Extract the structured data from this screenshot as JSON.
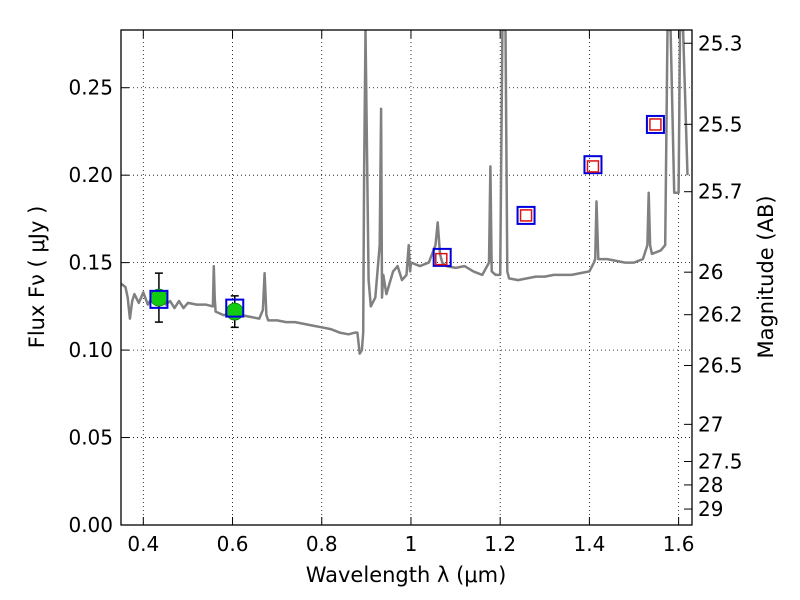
{
  "chart_data": {
    "type": "line",
    "xlabel": "Wavelength  λ (μm)",
    "ylabel": "Flux  Fν  ( μJy )",
    "y2label": "Magnitude (AB)",
    "xlim": [
      0.35,
      1.63
    ],
    "ylim": [
      0.0,
      0.283
    ],
    "grid": true,
    "x_ticks": [
      {
        "value": 0.4,
        "label": "0.4"
      },
      {
        "value": 0.6,
        "label": "0.6"
      },
      {
        "value": 0.8,
        "label": "0.8"
      },
      {
        "value": 1.0,
        "label": "1"
      },
      {
        "value": 1.2,
        "label": "1.2"
      },
      {
        "value": 1.4,
        "label": "1.4"
      },
      {
        "value": 1.6,
        "label": "1.6"
      }
    ],
    "y_ticks": [
      {
        "value": 0.0,
        "label": "0.00"
      },
      {
        "value": 0.05,
        "label": "0.05"
      },
      {
        "value": 0.1,
        "label": "0.10"
      },
      {
        "value": 0.15,
        "label": "0.15"
      },
      {
        "value": 0.2,
        "label": "0.20"
      },
      {
        "value": 0.25,
        "label": "0.25"
      }
    ],
    "mag_ticks": [
      {
        "value": 25.3,
        "label": "25.3"
      },
      {
        "value": 25.5,
        "label": "25.5"
      },
      {
        "value": 25.7,
        "label": "25.7"
      },
      {
        "value": 26,
        "label": "26"
      },
      {
        "value": 26.2,
        "label": "26.2"
      },
      {
        "value": 26.5,
        "label": "26.5"
      },
      {
        "value": 27,
        "label": "27"
      },
      {
        "value": 27.5,
        "label": "27.5"
      },
      {
        "value": 28,
        "label": "28"
      },
      {
        "value": 29,
        "label": "29"
      }
    ],
    "series": [
      {
        "kind": "line",
        "color": "#808080",
        "x": [
          0.35,
          0.36,
          0.365,
          0.37,
          0.375,
          0.38,
          0.39,
          0.4,
          0.41,
          0.42,
          0.43,
          0.44,
          0.45,
          0.46,
          0.47,
          0.48,
          0.49,
          0.5,
          0.52,
          0.54,
          0.556,
          0.558,
          0.56,
          0.562,
          0.58,
          0.6,
          0.62,
          0.64,
          0.66,
          0.668,
          0.672,
          0.676,
          0.68,
          0.7,
          0.72,
          0.74,
          0.76,
          0.78,
          0.8,
          0.82,
          0.84,
          0.86,
          0.875,
          0.88,
          0.885,
          0.89,
          0.893,
          0.895,
          0.898,
          0.905,
          0.91,
          0.92,
          0.93,
          0.933,
          0.935,
          0.938,
          0.945,
          0.96,
          0.97,
          0.98,
          0.99,
          0.995,
          0.998,
          1.0,
          1.02,
          1.04,
          1.055,
          1.06,
          1.065,
          1.07,
          1.08,
          1.1,
          1.12,
          1.14,
          1.16,
          1.175,
          1.178,
          1.181,
          1.19,
          1.2,
          1.205,
          1.208,
          1.212,
          1.216,
          1.22,
          1.24,
          1.26,
          1.28,
          1.3,
          1.32,
          1.34,
          1.36,
          1.38,
          1.4,
          1.41,
          1.413,
          1.416,
          1.42,
          1.44,
          1.46,
          1.48,
          1.5,
          1.52,
          1.53,
          1.533,
          1.536,
          1.54,
          1.56,
          1.57,
          1.575,
          1.578,
          1.582,
          1.59,
          1.6,
          1.603,
          1.606,
          1.61,
          1.62
        ],
        "y": [
          0.138,
          0.136,
          0.13,
          0.118,
          0.128,
          0.132,
          0.127,
          0.133,
          0.126,
          0.13,
          0.127,
          0.129,
          0.126,
          0.128,
          0.124,
          0.128,
          0.124,
          0.127,
          0.126,
          0.126,
          0.125,
          0.148,
          0.13,
          0.122,
          0.12,
          0.121,
          0.12,
          0.119,
          0.118,
          0.123,
          0.144,
          0.12,
          0.117,
          0.117,
          0.116,
          0.116,
          0.115,
          0.114,
          0.113,
          0.112,
          0.11,
          0.109,
          0.11,
          0.11,
          0.098,
          0.1,
          0.11,
          0.2,
          0.283,
          0.14,
          0.125,
          0.13,
          0.16,
          0.238,
          0.13,
          0.143,
          0.132,
          0.145,
          0.148,
          0.14,
          0.143,
          0.16,
          0.145,
          0.15,
          0.148,
          0.15,
          0.16,
          0.173,
          0.155,
          0.15,
          0.148,
          0.147,
          0.148,
          0.145,
          0.143,
          0.15,
          0.205,
          0.145,
          0.143,
          0.143,
          0.283,
          0.283,
          0.283,
          0.145,
          0.141,
          0.14,
          0.141,
          0.142,
          0.142,
          0.143,
          0.143,
          0.143,
          0.144,
          0.145,
          0.15,
          0.152,
          0.185,
          0.152,
          0.152,
          0.151,
          0.15,
          0.15,
          0.152,
          0.16,
          0.19,
          0.16,
          0.155,
          0.157,
          0.16,
          0.283,
          0.283,
          0.283,
          0.19,
          0.19,
          0.283,
          0.283,
          0.283,
          0.2
        ]
      },
      {
        "kind": "points",
        "name": "",
        "marker": "circle",
        "color": "#11cc11",
        "x": [
          0.435,
          0.605
        ],
        "y": [
          0.13,
          0.122
        ],
        "yerr": [
          0.014,
          0.009
        ]
      },
      {
        "kind": "points",
        "marker": "square-open",
        "color": "#0000dd",
        "x": [
          0.435,
          0.605,
          1.07,
          1.258,
          1.408,
          1.548
        ],
        "y": [
          0.129,
          0.124,
          0.153,
          0.177,
          0.206,
          0.229
        ]
      },
      {
        "kind": "points",
        "marker": "square-small-open",
        "color": "#dd1111",
        "x": [
          1.068,
          1.258,
          1.408,
          1.548
        ],
        "y": [
          0.152,
          0.177,
          0.205,
          0.229
        ]
      }
    ]
  }
}
